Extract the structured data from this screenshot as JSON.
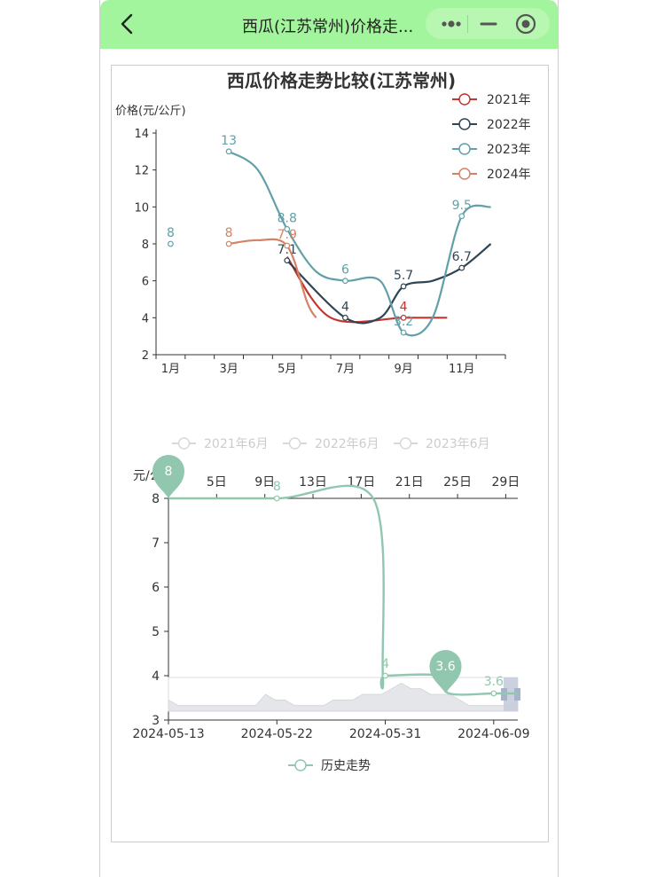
{
  "nav": {
    "title": "西瓜(江苏常州)价格走...",
    "icons": {
      "back": "chevron-left-icon",
      "menu": "more-dots-icon",
      "minimize": "minus-icon",
      "close": "target-circle-icon"
    },
    "colors": {
      "bar": "#a3f59d"
    }
  },
  "chart_data": [
    {
      "type": "line",
      "title": "西瓜价格走势比较(江苏常州)",
      "ylabel": "价格(元/公斤)",
      "xlabel": "",
      "x_ticks": [
        "1月",
        "3月",
        "5月",
        "7月",
        "9月",
        "11月"
      ],
      "y_ticks": [
        "2",
        "4",
        "6",
        "8",
        "10",
        "12",
        "14"
      ],
      "ylim": [
        2,
        14
      ],
      "xlim": [
        0.5,
        12.5
      ],
      "grid": false,
      "legend_position": "top-right",
      "smooth": true,
      "series": [
        {
          "name": "2021年",
          "color": "#c23531",
          "points": [
            [
              5,
              7.3
            ],
            [
              6.5,
              4
            ],
            [
              9,
              4
            ],
            [
              10.5,
              4
            ]
          ],
          "labeled": [
            [
              9,
              4,
              "4"
            ]
          ]
        },
        {
          "name": "2022年",
          "color": "#2f4554",
          "points": [
            [
              5,
              7.1
            ],
            [
              7,
              4
            ],
            [
              8.2,
              4
            ],
            [
              9,
              5.7
            ],
            [
              10,
              6
            ],
            [
              11,
              6.7
            ],
            [
              12,
              8
            ]
          ],
          "labeled": [
            [
              5,
              7.1,
              "7.1"
            ],
            [
              7,
              4,
              "4"
            ],
            [
              9,
              5.7,
              "5.7"
            ],
            [
              11,
              6.7,
              "6.7"
            ]
          ]
        },
        {
          "name": "2023年",
          "color": "#61a0a8",
          "points": [
            [
              1,
              8
            ],
            [
              3,
              13
            ],
            [
              4,
              12
            ],
            [
              5,
              8.8
            ],
            [
              6,
              6.5
            ],
            [
              7,
              6
            ],
            [
              8.2,
              6
            ],
            [
              9,
              3.2
            ],
            [
              10,
              4
            ],
            [
              11,
              9.5
            ],
            [
              12,
              10
            ]
          ],
          "isolated": [
            [
              1,
              8
            ]
          ],
          "labeled": [
            [
              1,
              8,
              "8"
            ],
            [
              3,
              13,
              "13"
            ],
            [
              5,
              8.8,
              "8.8"
            ],
            [
              7,
              6,
              "6"
            ],
            [
              9,
              3.2,
              "3.2"
            ],
            [
              11,
              9.5,
              "9.5"
            ]
          ]
        },
        {
          "name": "2024年",
          "color": "#d48265",
          "points": [
            [
              3,
              8
            ],
            [
              4,
              8.2
            ],
            [
              5,
              7.9
            ],
            [
              5.7,
              4.8
            ],
            [
              6,
              4
            ]
          ],
          "labeled": [
            [
              3,
              8,
              "8"
            ],
            [
              5,
              7.9,
              "7.9"
            ]
          ]
        }
      ]
    },
    {
      "type": "line",
      "title": "",
      "ylabel": "元/公斤",
      "legend_top": [
        "2021年6月",
        "2022年6月",
        "2023年6月"
      ],
      "x_top_ticks": [
        "5日",
        "9日",
        "13日",
        "17日",
        "21日",
        "25日",
        "29日"
      ],
      "x_bottom_ticks": [
        "2024-05-13",
        "2024-05-22",
        "2024-05-31",
        "2024-06-09"
      ],
      "y_ticks": [
        "3",
        "4",
        "5",
        "6",
        "7",
        "8"
      ],
      "ylim": [
        3,
        8
      ],
      "series": [
        {
          "name": "历史走势",
          "color": "#91c7ae",
          "points": [
            [
              0,
              8
            ],
            [
              9,
              8
            ],
            [
              17,
              8
            ],
            [
              17.8,
              4
            ],
            [
              18,
              4
            ],
            [
              22.5,
              4
            ],
            [
              23.3,
              3.6
            ],
            [
              27,
              3.6
            ],
            [
              29,
              3.6
            ]
          ],
          "labeled": [
            [
              9,
              8,
              "8"
            ],
            [
              18,
              4,
              "4"
            ],
            [
              27,
              3.6,
              "3.6"
            ]
          ],
          "markers": [
            [
              0,
              8,
              "8"
            ],
            [
              23,
              3.6,
              "3.6"
            ]
          ]
        }
      ],
      "datazoom_preview": [
        3.5,
        3.4,
        3.4,
        3.4,
        3.4,
        3.4,
        3.4,
        3.4,
        3.4,
        3.4,
        3.6,
        3.5,
        3.5,
        3.4,
        3.4,
        3.4,
        3.4,
        3.5,
        3.5,
        3.5,
        3.6,
        3.6,
        3.6,
        3.7,
        3.8,
        3.7,
        3.7,
        3.6,
        3.6,
        3.6,
        3.5,
        3.4,
        3.4,
        3.4,
        3.4,
        3.4,
        3.5
      ],
      "legend_bottom": "历史走势"
    }
  ]
}
